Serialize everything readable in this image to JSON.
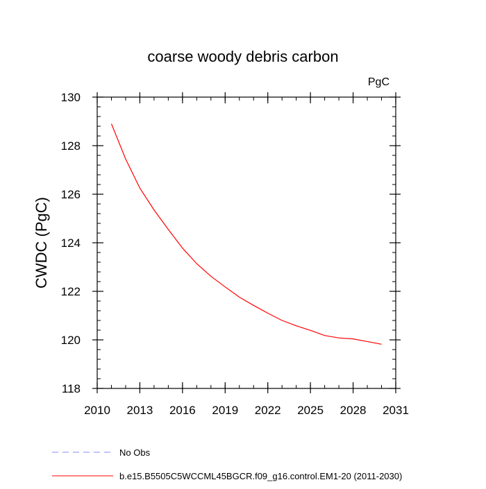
{
  "chart_data": {
    "type": "line",
    "title": "coarse woody debris carbon",
    "units": "PgC",
    "ylabel": "CWDC  (PgC)",
    "xlabel": "",
    "xlim": [
      2010,
      2031
    ],
    "ylim": [
      118,
      130
    ],
    "x_ticks": [
      2010,
      2013,
      2016,
      2019,
      2022,
      2025,
      2028,
      2031
    ],
    "x_minor_step": 1,
    "y_ticks": [
      118,
      120,
      122,
      124,
      126,
      128,
      130
    ],
    "y_minor_step": 0.4,
    "grid": false,
    "legend_position": "bottom-left",
    "series": [
      {
        "name": "b.e15.B5505C5WCCML45BGCR.f09_g16.control.EM1-20 (2011-2030)",
        "color": "#ff0000",
        "dash": "solid",
        "x": [
          2011,
          2012,
          2013,
          2014,
          2015,
          2016,
          2017,
          2018,
          2019,
          2020,
          2021,
          2022,
          2023,
          2024,
          2025,
          2026,
          2027,
          2028,
          2029,
          2030
        ],
        "y": [
          128.9,
          127.45,
          126.25,
          125.35,
          124.55,
          123.78,
          123.14,
          122.62,
          122.18,
          121.76,
          121.42,
          121.1,
          120.8,
          120.58,
          120.39,
          120.18,
          120.08,
          120.04,
          119.93,
          119.82
        ]
      },
      {
        "name": "No Obs",
        "color": "#8a8aff",
        "dash": "dashed",
        "x": [],
        "y": []
      }
    ]
  }
}
